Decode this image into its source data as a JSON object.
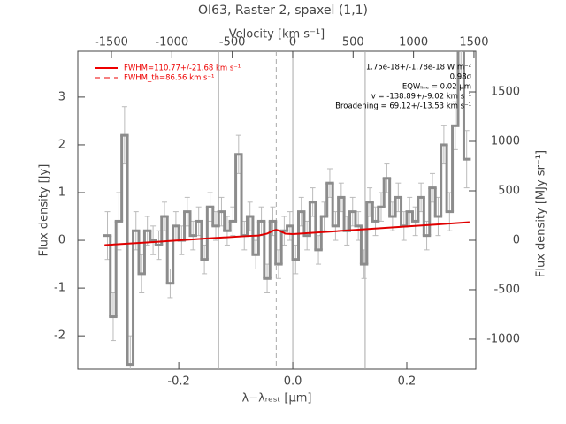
{
  "chart_data": {
    "type": "line",
    "title": "OI63, Raster 2, spaxel (1,1)",
    "xlabel": "λ−λᵣₑₛₜ [μm]",
    "ylabel": "Flux density [Jy]",
    "x2label": "Velocity [km s⁻¹]",
    "y2label": "Flux density [MJy sr⁻¹]",
    "xlim": [
      -0.377,
      0.321
    ],
    "ylim": [
      -2.7,
      3.96
    ],
    "x2lim": [
      -1778,
      1515
    ],
    "y2lim": [
      -1304,
      1911
    ],
    "xticks": [
      -0.2,
      {
        "value": 0,
        "label": "0.0"
      },
      0.2
    ],
    "yticks": [
      -2,
      -1,
      0,
      1,
      2,
      3
    ],
    "x2ticks": [
      -1500,
      -1000,
      -500,
      0,
      500,
      1000,
      1500
    ],
    "y2ticks": [
      -1000,
      -500,
      0,
      500,
      1000,
      1500
    ],
    "vlines": [
      -0.13,
      0,
      0.127
    ],
    "dashed_vline": -0.029,
    "spectrum": {
      "color": "#8c8c8c",
      "x": [
        -0.325,
        -0.315,
        -0.305,
        -0.295,
        -0.285,
        -0.275,
        -0.265,
        -0.255,
        -0.245,
        -0.235,
        -0.225,
        -0.215,
        -0.205,
        -0.195,
        -0.185,
        -0.175,
        -0.165,
        -0.155,
        -0.145,
        -0.135,
        -0.125,
        -0.115,
        -0.105,
        -0.095,
        -0.085,
        -0.075,
        -0.065,
        -0.055,
        -0.045,
        -0.035,
        -0.025,
        -0.015,
        -0.005,
        0.005,
        0.015,
        0.025,
        0.035,
        0.045,
        0.055,
        0.065,
        0.075,
        0.085,
        0.095,
        0.105,
        0.115,
        0.125,
        0.135,
        0.145,
        0.155,
        0.165,
        0.175,
        0.185,
        0.195,
        0.205,
        0.215,
        0.225,
        0.235,
        0.245,
        0.255,
        0.265,
        0.275,
        0.285,
        0.295,
        0.305
      ],
      "values": [
        0.1,
        -1.6,
        0.4,
        2.2,
        -2.6,
        0.2,
        -0.7,
        0.2,
        0.0,
        -0.1,
        0.5,
        -0.9,
        0.3,
        0.0,
        0.6,
        0.1,
        0.4,
        -0.4,
        0.7,
        0.3,
        0.6,
        0.2,
        0.4,
        1.8,
        0.1,
        0.5,
        -0.3,
        0.4,
        -0.8,
        0.4,
        -0.5,
        0.2,
        0.3,
        -0.4,
        0.6,
        0.1,
        0.8,
        -0.2,
        0.5,
        1.2,
        0.3,
        0.9,
        0.2,
        0.6,
        0.3,
        -0.5,
        0.8,
        0.4,
        0.7,
        1.3,
        0.5,
        0.9,
        0.3,
        0.6,
        0.4,
        0.9,
        0.1,
        1.1,
        0.5,
        2.0,
        0.6,
        2.4,
        4.0,
        1.7
      ],
      "errors": [
        0.5,
        0.5,
        0.6,
        0.6,
        0.6,
        0.4,
        0.4,
        0.3,
        0.3,
        0.3,
        0.3,
        0.3,
        0.3,
        0.3,
        0.3,
        0.3,
        0.3,
        0.3,
        0.3,
        0.3,
        0.3,
        0.3,
        0.3,
        0.4,
        0.3,
        0.3,
        0.3,
        0.3,
        0.3,
        0.3,
        0.3,
        0.3,
        0.3,
        0.3,
        0.3,
        0.3,
        0.3,
        0.3,
        0.3,
        0.3,
        0.3,
        0.3,
        0.3,
        0.3,
        0.3,
        0.3,
        0.3,
        0.3,
        0.3,
        0.3,
        0.3,
        0.3,
        0.3,
        0.3,
        0.3,
        0.3,
        0.3,
        0.3,
        0.4,
        0.4,
        0.4,
        0.5,
        0.6,
        0.6
      ]
    },
    "series": [
      {
        "name": "FWHM=110.77+/-21.68 km s⁻¹",
        "color": "#e00000",
        "dash": false,
        "x": [
          -0.33,
          -0.25,
          -0.15,
          -0.08,
          -0.06,
          -0.045,
          -0.035,
          -0.029,
          -0.023,
          -0.013,
          0.0,
          0.05,
          0.15,
          0.25,
          0.31
        ],
        "values": [
          -0.1,
          -0.04,
          0.04,
          0.09,
          0.1,
          0.14,
          0.2,
          0.22,
          0.2,
          0.14,
          0.13,
          0.17,
          0.25,
          0.33,
          0.38
        ]
      },
      {
        "name": "FWHM_th=86.56 km s⁻¹",
        "color": "#e00000",
        "dash": true,
        "x": [
          -0.33,
          -0.25,
          -0.15,
          -0.08,
          -0.06,
          -0.045,
          -0.035,
          -0.029,
          -0.023,
          -0.013,
          0.0,
          0.05,
          0.15,
          0.25,
          0.31
        ],
        "values": [
          -0.1,
          -0.04,
          0.04,
          0.09,
          0.1,
          0.13,
          0.19,
          0.22,
          0.19,
          0.13,
          0.13,
          0.17,
          0.25,
          0.33,
          0.38
        ]
      }
    ],
    "annotations": [
      "1.75e-18+/-1.78e-18 W m⁻²",
      "0.98σ",
      "EQWₗᵢₙₑ = 0.02 μm",
      "v = -138.89+/-9.02 km s⁻¹",
      "Broadening = 69.12+/-13.53 km s⁻¹"
    ]
  }
}
